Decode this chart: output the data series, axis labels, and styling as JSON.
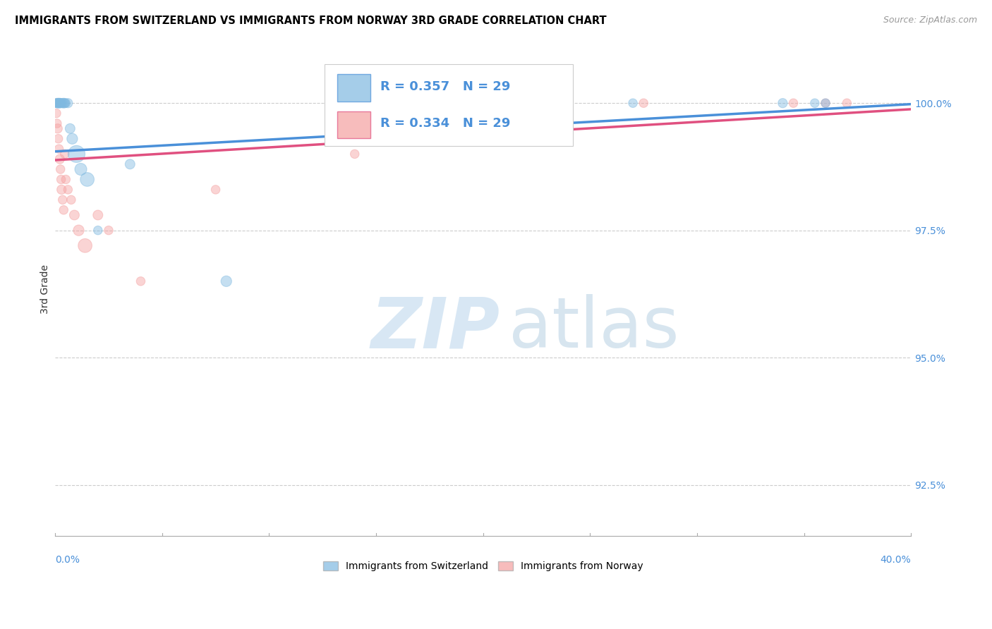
{
  "title": "IMMIGRANTS FROM SWITZERLAND VS IMMIGRANTS FROM NORWAY 3RD GRADE CORRELATION CHART",
  "source": "Source: ZipAtlas.com",
  "ylabel": "3rd Grade",
  "yticks": [
    92.5,
    95.0,
    97.5,
    100.0
  ],
  "ytick_labels": [
    "92.5%",
    "95.0%",
    "97.5%",
    "100.0%"
  ],
  "xlim": [
    0.0,
    40.0
  ],
  "ylim": [
    91.5,
    101.2
  ],
  "legend_blue_r": "R = 0.357",
  "legend_blue_n": "N = 29",
  "legend_pink_r": "R = 0.334",
  "legend_pink_n": "N = 29",
  "legend_label_blue": "Immigrants from Switzerland",
  "legend_label_pink": "Immigrants from Norway",
  "blue_color": "#7fb9e0",
  "pink_color": "#f4a0a0",
  "blue_line_color": "#4a90d9",
  "pink_line_color": "#e05080",
  "blue_reg_x0": 0.0,
  "blue_reg_y0": 99.05,
  "blue_reg_x1": 40.0,
  "blue_reg_y1": 99.98,
  "pink_reg_x0": 0.0,
  "pink_reg_y0": 98.88,
  "pink_reg_x1": 40.0,
  "pink_reg_y1": 99.88,
  "swiss_x": [
    0.05,
    0.08,
    0.1,
    0.12,
    0.15,
    0.18,
    0.2,
    0.22,
    0.25,
    0.28,
    0.3,
    0.35,
    0.4,
    0.45,
    0.5,
    0.6,
    0.7,
    0.8,
    1.0,
    1.2,
    1.5,
    2.0,
    3.5,
    8.0,
    22.0,
    27.0,
    34.0,
    35.5,
    36.0
  ],
  "swiss_y": [
    100.0,
    100.0,
    100.0,
    100.0,
    100.0,
    100.0,
    100.0,
    100.0,
    100.0,
    100.0,
    100.0,
    100.0,
    100.0,
    100.0,
    100.0,
    100.0,
    99.5,
    99.3,
    99.0,
    98.7,
    98.5,
    97.5,
    98.8,
    96.5,
    100.0,
    100.0,
    100.0,
    100.0,
    100.0
  ],
  "swiss_sizes": [
    80,
    80,
    90,
    100,
    80,
    90,
    100,
    80,
    90,
    80,
    80,
    90,
    100,
    90,
    80,
    90,
    100,
    120,
    300,
    150,
    200,
    80,
    100,
    120,
    100,
    80,
    90,
    80,
    80
  ],
  "norway_x": [
    0.03,
    0.06,
    0.09,
    0.12,
    0.15,
    0.18,
    0.22,
    0.25,
    0.28,
    0.3,
    0.35,
    0.4,
    0.45,
    0.5,
    0.6,
    0.75,
    0.9,
    1.1,
    1.4,
    2.0,
    2.5,
    4.0,
    7.5,
    14.0,
    22.5,
    27.5,
    34.5,
    36.0,
    37.0
  ],
  "norway_y": [
    100.0,
    99.8,
    99.6,
    99.5,
    99.3,
    99.1,
    98.9,
    98.7,
    98.5,
    98.3,
    98.1,
    97.9,
    99.0,
    98.5,
    98.3,
    98.1,
    97.8,
    97.5,
    97.2,
    97.8,
    97.5,
    96.5,
    98.3,
    99.0,
    100.0,
    100.0,
    100.0,
    100.0,
    100.0
  ],
  "norway_sizes": [
    80,
    80,
    80,
    90,
    80,
    80,
    90,
    80,
    80,
    90,
    80,
    80,
    80,
    80,
    80,
    80,
    100,
    120,
    200,
    100,
    80,
    80,
    80,
    80,
    80,
    80,
    80,
    80,
    80
  ]
}
